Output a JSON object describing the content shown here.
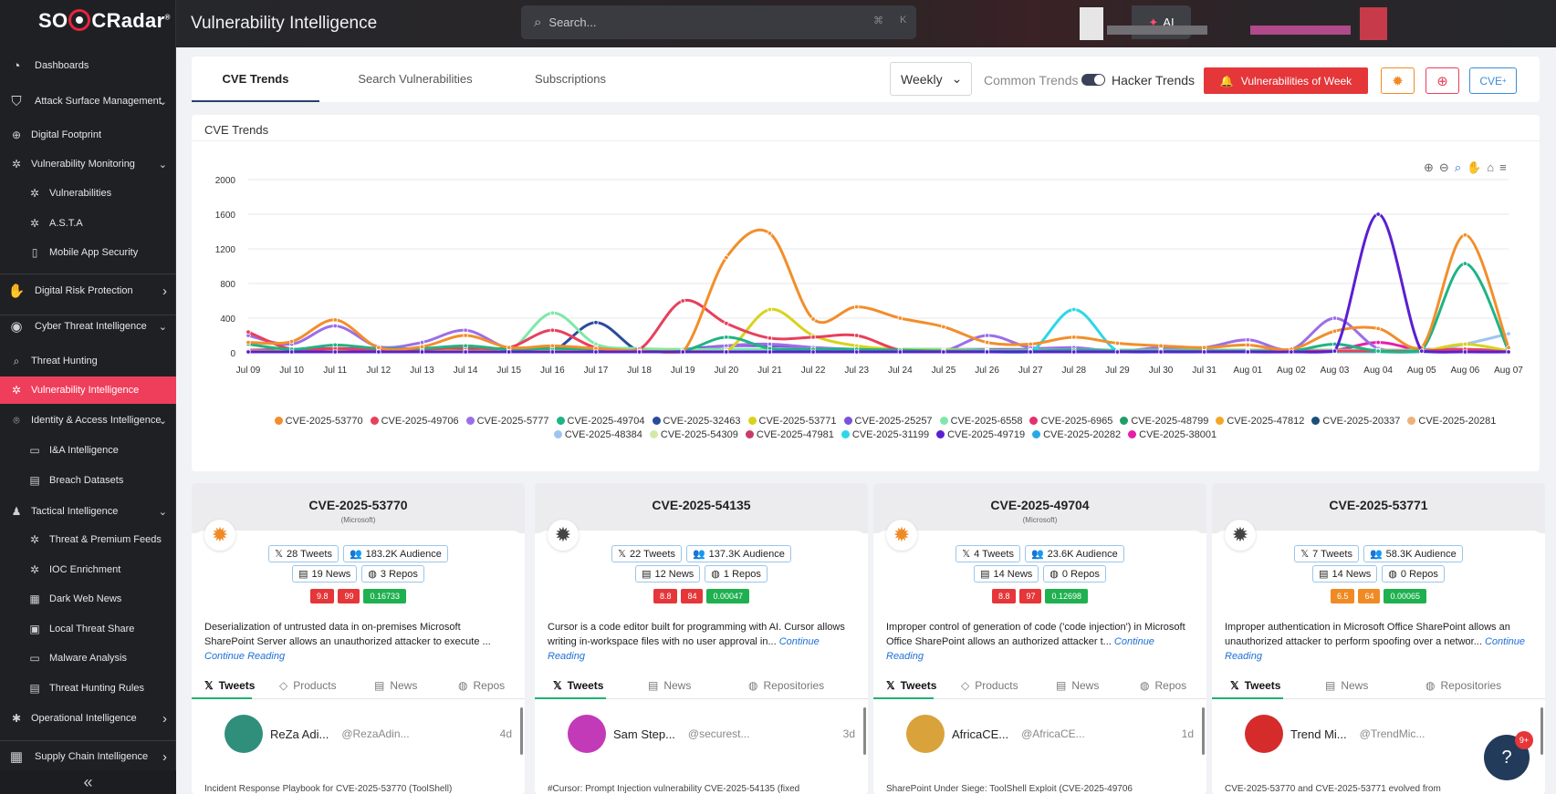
{
  "app": {
    "logo": "SOCRadar",
    "page_title": "Vulnerability Intelligence"
  },
  "search": {
    "placeholder": "Search...",
    "shortcut_cmd": "⌘",
    "shortcut_key": "K",
    "ai_label": "AI"
  },
  "sidebar": {
    "items": [
      {
        "label": "Dashboards",
        "icon": "dashboard-icon"
      },
      {
        "label": "Attack Surface Management",
        "icon": "attack-surface-icon"
      },
      {
        "label": "Digital Footprint",
        "icon": "globe-icon"
      },
      {
        "label": "Vulnerability Monitoring",
        "icon": "bug-icon"
      },
      {
        "label": "Vulnerabilities",
        "icon": "bug-icon"
      },
      {
        "label": "A.S.T.A",
        "icon": "asta-icon"
      },
      {
        "label": "Mobile App Security",
        "icon": "mobile-icon"
      },
      {
        "label": "Digital Risk Protection",
        "icon": "hand-icon"
      },
      {
        "label": "Cyber Threat Intelligence",
        "icon": "eye-icon"
      },
      {
        "label": "Threat Hunting",
        "icon": "search-icon"
      },
      {
        "label": "Vulnerability Intelligence",
        "icon": "bug-icon"
      },
      {
        "label": "Identity & Access Intelligence",
        "icon": "fingerprint-icon"
      },
      {
        "label": "I&A Intelligence",
        "icon": "monitor-icon"
      },
      {
        "label": "Breach Datasets",
        "icon": "database-icon"
      },
      {
        "label": "Tactical Intelligence",
        "icon": "person-icon"
      },
      {
        "label": "Threat & Premium Feeds",
        "icon": "bug-icon"
      },
      {
        "label": "IOC Enrichment",
        "icon": "spider-icon"
      },
      {
        "label": "Dark Web News",
        "icon": "newspaper-icon"
      },
      {
        "label": "Local Threat Share",
        "icon": "share-icon"
      },
      {
        "label": "Malware Analysis",
        "icon": "monitor-icon"
      },
      {
        "label": "Threat Hunting Rules",
        "icon": "rules-icon"
      },
      {
        "label": "Operational Intelligence",
        "icon": "gear-icon"
      },
      {
        "label": "Supply Chain Intelligence",
        "icon": "network-icon"
      }
    ]
  },
  "tabs": {
    "cve_trends": "CVE Trends",
    "search_vulns": "Search Vulnerabilities",
    "subscriptions": "Subscriptions"
  },
  "toolbar": {
    "period": "Weekly",
    "common_trends": "Common Trends",
    "hacker_trends": "Hacker Trends",
    "vow_label": "Vulnerabilities of Week",
    "cve_btn": "CVE"
  },
  "colors": {
    "accent": "#ef3e5c",
    "red_button": "#e53639",
    "sidebar_bg": "#1f2024",
    "orange_btn": "#f08a24",
    "pink_btn": "#e8405c",
    "blue_btn": "#3b8ed8"
  },
  "chart_title": "CVE Trends",
  "chart_data": {
    "type": "line",
    "categories": [
      "Jul 09",
      "Jul 10",
      "Jul 11",
      "Jul 12",
      "Jul 13",
      "Jul 14",
      "Jul 15",
      "Jul 16",
      "Jul 17",
      "Jul 18",
      "Jul 19",
      "Jul 20",
      "Jul 21",
      "Jul 22",
      "Jul 23",
      "Jul 24",
      "Jul 25",
      "Jul 26",
      "Jul 27",
      "Jul 28",
      "Jul 29",
      "Jul 30",
      "Jul 31",
      "Aug 01",
      "Aug 02",
      "Aug 03",
      "Aug 04",
      "Aug 05",
      "Aug 06",
      "Aug 07"
    ],
    "yticks": [
      0,
      400,
      800,
      1200,
      1600,
      2000
    ],
    "ylim": [
      0,
      2000
    ],
    "grid": true,
    "legend_position": "bottom",
    "series": [
      {
        "name": "CVE-2025-53770",
        "color": "#f28e2b",
        "values": [
          120,
          130,
          380,
          60,
          70,
          200,
          60,
          80,
          50,
          20,
          10,
          1100,
          1380,
          390,
          530,
          400,
          300,
          120,
          100,
          180,
          110,
          80,
          60,
          90,
          40,
          250,
          280,
          60,
          1360,
          60
        ]
      },
      {
        "name": "CVE-2025-49706",
        "color": "#e8405c",
        "values": [
          240,
          40,
          50,
          30,
          40,
          60,
          60,
          260,
          60,
          40,
          600,
          340,
          170,
          180,
          200,
          30,
          20,
          20,
          20,
          20,
          20,
          20,
          20,
          20,
          20,
          20,
          20,
          20,
          40,
          10
        ]
      },
      {
        "name": "CVE-2025-5777",
        "color": "#9b6ee8",
        "values": [
          200,
          100,
          310,
          70,
          120,
          260,
          50,
          50,
          30,
          20,
          10,
          80,
          100,
          60,
          30,
          20,
          20,
          200,
          60,
          60,
          20,
          60,
          60,
          150,
          40,
          400,
          50,
          40,
          40,
          30
        ]
      },
      {
        "name": "CVE-2025-49704",
        "color": "#1fb385",
        "values": [
          100,
          40,
          90,
          50,
          50,
          80,
          40,
          50,
          40,
          20,
          20,
          180,
          50,
          40,
          40,
          30,
          20,
          20,
          20,
          30,
          20,
          20,
          20,
          20,
          20,
          100,
          20,
          30,
          1030,
          20
        ]
      },
      {
        "name": "CVE-2025-32463",
        "color": "#2b4a9c",
        "values": [
          20,
          30,
          40,
          20,
          30,
          30,
          20,
          20,
          350,
          20,
          20,
          20,
          20,
          20,
          20,
          20,
          20,
          20,
          20,
          20,
          20,
          20,
          20,
          20,
          20,
          20,
          20,
          20,
          20,
          20
        ]
      },
      {
        "name": "CVE-2025-53771",
        "color": "#d9d21c",
        "values": [
          20,
          20,
          20,
          20,
          20,
          20,
          20,
          20,
          20,
          20,
          20,
          20,
          500,
          200,
          80,
          40,
          30,
          20,
          20,
          20,
          20,
          20,
          20,
          20,
          20,
          20,
          20,
          20,
          100,
          20
        ]
      },
      {
        "name": "CVE-2025-25257",
        "color": "#7b52d9",
        "values": [
          30,
          40,
          50,
          40,
          40,
          40,
          40,
          50,
          40,
          40,
          40,
          80,
          80,
          60,
          40,
          40,
          40,
          40,
          40,
          40,
          30,
          30,
          30,
          30,
          30,
          30,
          30,
          30,
          30,
          30
        ]
      },
      {
        "name": "CVE-2025-6558",
        "color": "#7ee8a8",
        "values": [
          20,
          20,
          20,
          20,
          20,
          20,
          20,
          460,
          100,
          50,
          40,
          40,
          40,
          40,
          40,
          40,
          40,
          30,
          30,
          30,
          30,
          30,
          30,
          30,
          30,
          30,
          30,
          30,
          30,
          30
        ]
      },
      {
        "name": "CVE-2025-6965",
        "color": "#e82e6a",
        "values": [
          20,
          20,
          20,
          20,
          20,
          20,
          20,
          20,
          20,
          20,
          20,
          20,
          20,
          20,
          20,
          20,
          20,
          20,
          20,
          20,
          20,
          20,
          20,
          20,
          20,
          20,
          20,
          20,
          20,
          20
        ]
      },
      {
        "name": "CVE-2025-48799",
        "color": "#1f9e6a",
        "values": [
          10,
          10,
          10,
          10,
          10,
          10,
          10,
          10,
          10,
          10,
          10,
          10,
          10,
          10,
          10,
          10,
          10,
          10,
          10,
          10,
          10,
          10,
          10,
          10,
          10,
          10,
          10,
          10,
          10,
          10
        ]
      },
      {
        "name": "CVE-2025-47812",
        "color": "#f5a623",
        "values": [
          10,
          10,
          10,
          10,
          10,
          10,
          10,
          10,
          10,
          10,
          10,
          10,
          10,
          10,
          10,
          10,
          10,
          10,
          10,
          10,
          10,
          10,
          10,
          10,
          10,
          10,
          10,
          10,
          10,
          10
        ]
      },
      {
        "name": "CVE-2025-20337",
        "color": "#1a4f7a",
        "values": [
          10,
          10,
          10,
          10,
          10,
          10,
          10,
          10,
          10,
          10,
          10,
          10,
          10,
          10,
          10,
          10,
          10,
          10,
          10,
          10,
          10,
          10,
          10,
          10,
          10,
          10,
          10,
          10,
          10,
          10
        ]
      },
      {
        "name": "CVE-2025-20281",
        "color": "#f0b07a",
        "values": [
          10,
          10,
          10,
          10,
          10,
          10,
          10,
          10,
          10,
          10,
          10,
          10,
          10,
          10,
          10,
          10,
          10,
          10,
          10,
          10,
          10,
          10,
          10,
          10,
          10,
          10,
          10,
          10,
          10,
          10
        ]
      },
      {
        "name": "CVE-2025-48384",
        "color": "#9ec5ee",
        "values": [
          10,
          10,
          10,
          10,
          10,
          10,
          10,
          10,
          10,
          10,
          10,
          10,
          10,
          10,
          10,
          10,
          10,
          10,
          10,
          10,
          10,
          10,
          10,
          10,
          10,
          10,
          10,
          10,
          100,
          220
        ]
      },
      {
        "name": "CVE-2025-54309",
        "color": "#d6e8a8",
        "values": [
          10,
          10,
          10,
          10,
          10,
          10,
          10,
          10,
          10,
          10,
          10,
          10,
          10,
          10,
          10,
          10,
          10,
          10,
          10,
          10,
          10,
          10,
          10,
          10,
          10,
          10,
          10,
          10,
          10,
          10
        ]
      },
      {
        "name": "CVE-2025-47981",
        "color": "#c93a6e",
        "values": [
          10,
          10,
          10,
          10,
          10,
          10,
          10,
          10,
          10,
          10,
          10,
          10,
          10,
          10,
          10,
          10,
          10,
          10,
          10,
          10,
          10,
          10,
          10,
          10,
          10,
          10,
          10,
          10,
          10,
          10
        ]
      },
      {
        "name": "CVE-2025-31199",
        "color": "#2ed6e8",
        "values": [
          10,
          10,
          10,
          10,
          10,
          10,
          10,
          10,
          10,
          10,
          10,
          10,
          10,
          10,
          10,
          10,
          10,
          10,
          10,
          500,
          20,
          10,
          10,
          10,
          10,
          10,
          10,
          10,
          10,
          10
        ]
      },
      {
        "name": "CVE-2025-49719",
        "color": "#5a1fd1",
        "values": [
          10,
          10,
          10,
          10,
          10,
          10,
          10,
          10,
          10,
          10,
          10,
          10,
          10,
          10,
          10,
          10,
          10,
          10,
          10,
          10,
          10,
          10,
          10,
          10,
          10,
          20,
          1600,
          20,
          10,
          10
        ]
      },
      {
        "name": "CVE-2025-20282",
        "color": "#29a8e8",
        "values": [
          10,
          10,
          10,
          10,
          10,
          10,
          10,
          10,
          10,
          10,
          10,
          10,
          10,
          10,
          10,
          10,
          10,
          10,
          10,
          10,
          10,
          10,
          10,
          10,
          10,
          10,
          10,
          10,
          10,
          10
        ]
      },
      {
        "name": "CVE-2025-38001",
        "color": "#e81ea8",
        "values": [
          30,
          30,
          30,
          30,
          30,
          30,
          30,
          30,
          30,
          30,
          30,
          30,
          30,
          30,
          30,
          30,
          30,
          30,
          30,
          30,
          30,
          30,
          30,
          30,
          30,
          30,
          120,
          30,
          30,
          30
        ]
      }
    ]
  },
  "cards": [
    {
      "cve": "CVE-2025-53770",
      "vendor": "(Microsoft)",
      "bug_color": "#f08a24",
      "tweets": "28 Tweets",
      "audience": "183.2K Audience",
      "news": "19 News",
      "repos": "3 Repos",
      "scores": [
        {
          "v": "9.8",
          "c": "#e53639"
        },
        {
          "v": "99",
          "c": "#e53639"
        },
        {
          "v": "0.16733",
          "c": "#1fb050"
        }
      ],
      "desc": "Deserialization of untrusted data in on-premises Microsoft SharePoint Server allows an unauthorized attacker to execute ...",
      "cont": "Continue Reading",
      "tabs": [
        "Tweets",
        "Products",
        "News",
        "Repos"
      ],
      "user": "ReZa Adi...",
      "handle": "@RezaAdin...",
      "ago": "4d",
      "avatar_color": "#2f8f7a",
      "snippet": "Incident Response Playbook for CVE-2025-53770 (ToolShell)"
    },
    {
      "cve": "CVE-2025-54135",
      "vendor": "",
      "bug_color": "#444",
      "tweets": "22 Tweets",
      "audience": "137.3K Audience",
      "news": "12 News",
      "repos": "1 Repos",
      "scores": [
        {
          "v": "8.8",
          "c": "#e53639"
        },
        {
          "v": "84",
          "c": "#e53639"
        },
        {
          "v": "0.00047",
          "c": "#1fb050"
        }
      ],
      "desc": "Cursor is a code editor built for programming with AI. Cursor allows writing in-workspace files with no user approval in...",
      "cont": "Continue Reading",
      "tabs": [
        "Tweets",
        "News",
        "Repositories"
      ],
      "user": "Sam Step...",
      "handle": "@securest...",
      "ago": "3d",
      "avatar_color": "#c23ab8",
      "snippet": "#Cursor: Prompt Injection vulnerability CVE-2025-54135 (fixed"
    },
    {
      "cve": "CVE-2025-49704",
      "vendor": "(Microsoft)",
      "bug_color": "#f08a24",
      "tweets": "4 Tweets",
      "audience": "23.6K Audience",
      "news": "14 News",
      "repos": "0 Repos",
      "scores": [
        {
          "v": "8.8",
          "c": "#e53639"
        },
        {
          "v": "97",
          "c": "#e53639"
        },
        {
          "v": "0.12698",
          "c": "#1fb050"
        }
      ],
      "desc": "Improper control of generation of code ('code injection') in Microsoft Office SharePoint allows an authorized attacker t...",
      "cont": "Continue Reading",
      "tabs": [
        "Tweets",
        "Products",
        "News",
        "Repos"
      ],
      "user": "AfricaCE...",
      "handle": "@AfricaCE...",
      "ago": "1d",
      "avatar_color": "#d9a23a",
      "snippet": "SharePoint Under Siege: ToolShell Exploit (CVE-2025-49706"
    },
    {
      "cve": "CVE-2025-53771",
      "vendor": "",
      "bug_color": "#444",
      "tweets": "7 Tweets",
      "audience": "58.3K Audience",
      "news": "14 News",
      "repos": "0 Repos",
      "scores": [
        {
          "v": "6.5",
          "c": "#f08a24"
        },
        {
          "v": "64",
          "c": "#f08a24"
        },
        {
          "v": "0.00065",
          "c": "#1fb050"
        }
      ],
      "desc": "Improper authentication in Microsoft Office SharePoint allows an unauthorized attacker to perform spoofing over a networ...",
      "cont": "Continue Reading",
      "tabs": [
        "Tweets",
        "News",
        "Repositories"
      ],
      "user": "Trend Mi...",
      "handle": "@TrendMic...",
      "ago": "",
      "avatar_color": "#d62b2b",
      "snippet": "CVE-2025-53770 and CVE-2025-53771 evolved from"
    }
  ],
  "help": {
    "badge": "9+"
  }
}
